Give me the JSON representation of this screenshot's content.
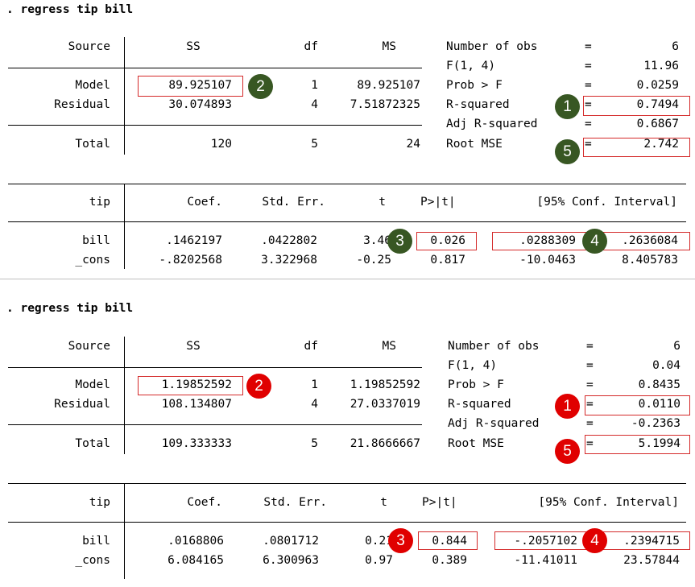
{
  "accents": {
    "green_badge": "#385723",
    "red_badge": "#e00000",
    "highlight_box": "#d42a2a"
  },
  "outputs": [
    {
      "command": ". regress tip bill",
      "anova": {
        "headers": {
          "source": "Source",
          "ss": "SS",
          "df": "df",
          "ms": "MS"
        },
        "rows": [
          {
            "source": "Model",
            "ss": "89.925107",
            "df": "1",
            "ms": "89.925107"
          },
          {
            "source": "Residual",
            "ss": "30.074893",
            "df": "4",
            "ms": "7.51872325"
          },
          {
            "source": "Total",
            "ss": "120",
            "df": "5",
            "ms": "24"
          }
        ]
      },
      "stats": [
        {
          "label": "Number of obs",
          "eq": "=",
          "value": "6"
        },
        {
          "label": "F(1, 4)",
          "eq": "=",
          "value": "11.96"
        },
        {
          "label": "Prob > F",
          "eq": "=",
          "value": "0.0259"
        },
        {
          "label": "R-squared",
          "eq": "=",
          "value": "0.7494"
        },
        {
          "label": "Adj R-squared",
          "eq": "=",
          "value": "0.6867"
        },
        {
          "label": "Root MSE",
          "eq": "=",
          "value": "2.742"
        }
      ],
      "coef": {
        "headers": {
          "var": "tip",
          "coef": "Coef.",
          "se": "Std. Err.",
          "t": "t",
          "p": "P>|t|",
          "ci": "[95% Conf. Interval]"
        },
        "rows": [
          {
            "var": "bill",
            "coef": ".1462197",
            "se": ".0422802",
            "t": "3.46",
            "p": "0.026",
            "lo": ".0288309",
            "hi": ".2636084"
          },
          {
            "var": "_cons",
            "coef": "-.8202568",
            "se": "3.322968",
            "t": "-0.25",
            "p": "0.817",
            "lo": "-10.0463",
            "hi": "8.405783"
          }
        ]
      },
      "badges": {
        "b1": "1",
        "b2": "2",
        "b3": "3",
        "b4": "4",
        "b5": "5"
      }
    },
    {
      "command": ". regress tip bill",
      "anova": {
        "headers": {
          "source": "Source",
          "ss": "SS",
          "df": "df",
          "ms": "MS"
        },
        "rows": [
          {
            "source": "Model",
            "ss": "1.19852592",
            "df": "1",
            "ms": "1.19852592"
          },
          {
            "source": "Residual",
            "ss": "108.134807",
            "df": "4",
            "ms": "27.0337019"
          },
          {
            "source": "Total",
            "ss": "109.333333",
            "df": "5",
            "ms": "21.8666667"
          }
        ]
      },
      "stats": [
        {
          "label": "Number of obs",
          "eq": "=",
          "value": "6"
        },
        {
          "label": "F(1, 4)",
          "eq": "=",
          "value": "0.04"
        },
        {
          "label": "Prob > F",
          "eq": "=",
          "value": "0.8435"
        },
        {
          "label": "R-squared",
          "eq": "=",
          "value": "0.0110"
        },
        {
          "label": "Adj R-squared",
          "eq": "=",
          "value": "-0.2363"
        },
        {
          "label": "Root MSE",
          "eq": "=",
          "value": "5.1994"
        }
      ],
      "coef": {
        "headers": {
          "var": "tip",
          "coef": "Coef.",
          "se": "Std. Err.",
          "t": "t",
          "p": "P>|t|",
          "ci": "[95% Conf. Interval]"
        },
        "rows": [
          {
            "var": "bill",
            "coef": ".0168806",
            "se": ".0801712",
            "t": "0.21",
            "p": "0.844",
            "lo": "-.2057102",
            "hi": ".2394715"
          },
          {
            "var": "_cons",
            "coef": "6.084165",
            "se": "6.300963",
            "t": "0.97",
            "p": "0.389",
            "lo": "-11.41011",
            "hi": "23.57844"
          }
        ]
      },
      "badges": {
        "b1": "1",
        "b2": "2",
        "b3": "3",
        "b4": "4",
        "b5": "5"
      }
    }
  ]
}
